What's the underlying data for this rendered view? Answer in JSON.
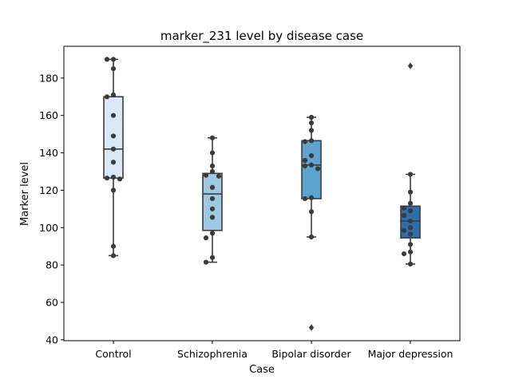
{
  "chart_data": {
    "type": "box",
    "title": "marker_231 level by disease case",
    "xlabel": "Case",
    "ylabel": "Marker level",
    "ylim": [
      39.5,
      197
    ],
    "yticks": [
      40,
      60,
      80,
      100,
      120,
      140,
      160,
      180
    ],
    "grid": false,
    "categories": [
      "Control",
      "Schizophrenia",
      "Bipolar disorder",
      "Major depression"
    ],
    "box_colors": [
      "#dbe9f6",
      "#9ecae1",
      "#5da5d0",
      "#2d6fae"
    ],
    "point_color": "#3b3b3b",
    "outlier_marker": "diamond",
    "boxes": [
      {
        "category": "Control",
        "whisker_low": 85,
        "q1": 126.5,
        "median": 142,
        "q3": 170,
        "whisker_high": 190,
        "outliers": [],
        "points": [
          190,
          190,
          185,
          171,
          170,
          160,
          149,
          142,
          135,
          127,
          126.5,
          126,
          120,
          90,
          85
        ]
      },
      {
        "category": "Schizophrenia",
        "whisker_low": 81.5,
        "q1": 98.5,
        "median": 118,
        "q3": 129,
        "whisker_high": 148,
        "outliers": [],
        "points": [
          148,
          140,
          133,
          130,
          128,
          127.5,
          121.5,
          115.5,
          110,
          105.5,
          97,
          94.5,
          84,
          81.5
        ]
      },
      {
        "category": "Bipolar disorder",
        "whisker_low": 95,
        "q1": 115.5,
        "median": 133.5,
        "q3": 146.5,
        "whisker_high": 159,
        "outliers": [
          46.5
        ],
        "points": [
          159,
          156,
          152,
          146.5,
          146,
          138.5,
          136,
          133.5,
          133,
          131.5,
          116,
          115.5,
          108.5,
          95
        ]
      },
      {
        "category": "Major depression",
        "whisker_low": 80.5,
        "q1": 94.5,
        "median": 103.5,
        "q3": 111.5,
        "whisker_high": 128.5,
        "outliers": [
          186.5
        ],
        "points": [
          128.5,
          119,
          113,
          110.5,
          109,
          106.5,
          103.5,
          100,
          98.5,
          96.5,
          91,
          87,
          86,
          80.5
        ]
      }
    ]
  }
}
